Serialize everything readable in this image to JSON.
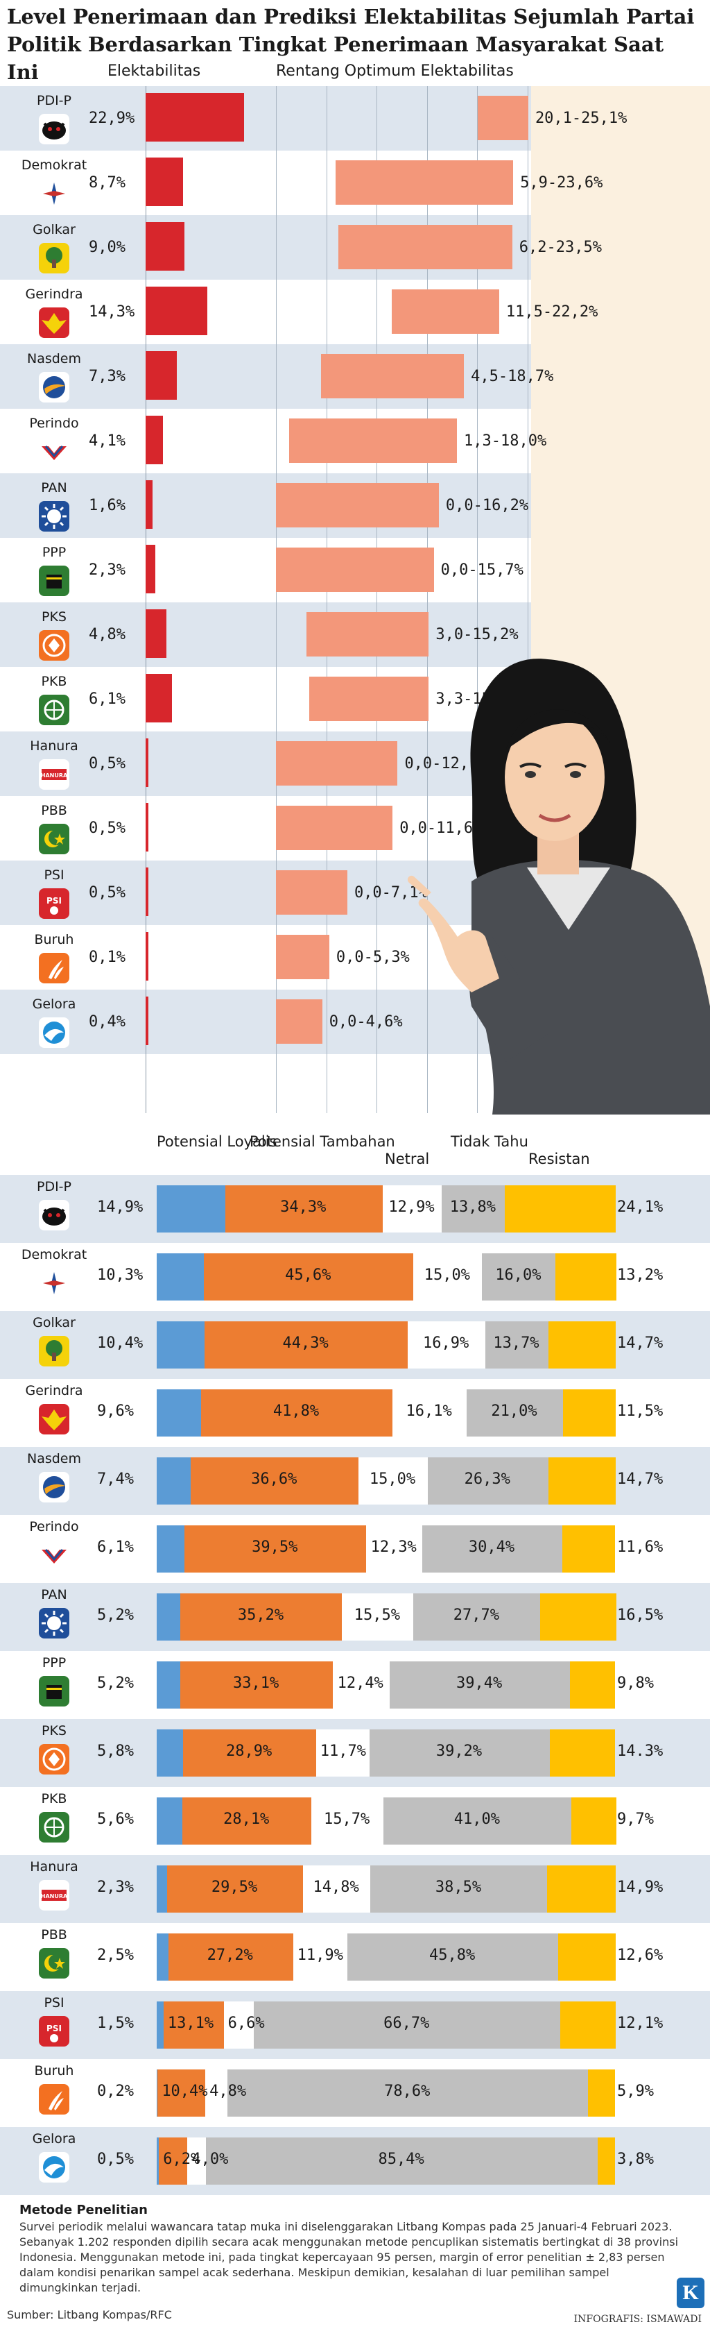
{
  "title": "Level Penerimaan dan Prediksi Elektabilitas Sejumlah Partai Politik Berdasarkan Tingkat Penerimaan Masyarakat Saat Ini",
  "colors": {
    "band": "#dde5ee",
    "elek_bar": "#d7262c",
    "range_bar": "#f3977a",
    "loyal": "#5b9bd5",
    "tambahan": "#ed7d31",
    "netral": "#ffffff",
    "tidak_tahu": "#bfbfbf",
    "resistan": "#ffc000",
    "cream": "#fbf0df"
  },
  "section1": {
    "header_elek": "Elektabilitas",
    "header_range": "Rentang Optimum Elektabilitas"
  },
  "section2": {
    "headers": {
      "loyal": "Potensial Loyalis",
      "tambahan": "Potensial Tambahan",
      "netral": "Netral",
      "tidak_tahu": "Tidak Tahu",
      "resistan": "Resistan"
    }
  },
  "parties": [
    {
      "name": "PDI-P",
      "logo": "bull-icon",
      "logo_bg": "#ffffff",
      "logo_fg": "#d7262c"
    },
    {
      "name": "Demokrat",
      "logo": "mercy-star-icon",
      "logo_bg": "#ffffff",
      "logo_fg": "#1f4e9a"
    },
    {
      "name": "Golkar",
      "logo": "banyan-tree-icon",
      "logo_bg": "#f5d20a",
      "logo_fg": "#2e7d32"
    },
    {
      "name": "Gerindra",
      "logo": "garuda-icon",
      "logo_bg": "#d7262c",
      "logo_fg": "#f5d20a"
    },
    {
      "name": "Nasdem",
      "logo": "nasdem-circle-icon",
      "logo_bg": "#ffffff",
      "logo_fg": "#1f4e9a"
    },
    {
      "name": "Perindo",
      "logo": "perindo-wing-icon",
      "logo_bg": "#ffffff",
      "logo_fg": "#1f4e9a"
    },
    {
      "name": "PAN",
      "logo": "sun-icon",
      "logo_bg": "#1f4e9a",
      "logo_fg": "#ffffff"
    },
    {
      "name": "PPP",
      "logo": "kaaba-icon",
      "logo_bg": "#2e7d32",
      "logo_fg": "#f5d20a"
    },
    {
      "name": "PKS",
      "logo": "pks-crescent-icon",
      "logo_bg": "#f37021",
      "logo_fg": "#ffffff"
    },
    {
      "name": "PKB",
      "logo": "globe-star-icon",
      "logo_bg": "#2e7d32",
      "logo_fg": "#ffffff"
    },
    {
      "name": "Hanura",
      "logo": "hanura-shield-icon",
      "logo_bg": "#ffffff",
      "logo_fg": "#d7262c",
      "logo_text": "HANURA"
    },
    {
      "name": "PBB",
      "logo": "crescent-star-icon",
      "logo_bg": "#2e7d32",
      "logo_fg": "#f5d20a"
    },
    {
      "name": "PSI",
      "logo": "psi-rose-icon",
      "logo_bg": "#d7262c",
      "logo_fg": "#ffffff",
      "logo_text": "PSI"
    },
    {
      "name": "Buruh",
      "logo": "buruh-sprout-icon",
      "logo_bg": "#f37021",
      "logo_fg": "#ffffff"
    },
    {
      "name": "Gelora",
      "logo": "gelora-wave-icon",
      "logo_bg": "#ffffff",
      "logo_fg": "#1f8fd6"
    }
  ],
  "chart_data": [
    {
      "type": "bar",
      "title": "Elektabilitas",
      "categories": [
        "PDI-P",
        "Demokrat",
        "Golkar",
        "Gerindra",
        "Nasdem",
        "Perindo",
        "PAN",
        "PPP",
        "PKS",
        "PKB",
        "Hanura",
        "PBB",
        "PSI",
        "Buruh",
        "Gelora"
      ],
      "values": [
        22.9,
        8.7,
        9.0,
        14.3,
        7.3,
        4.1,
        1.6,
        2.3,
        4.8,
        6.1,
        0.5,
        0.5,
        0.5,
        0.1,
        0.4
      ],
      "labels": [
        "22,9%",
        "8,7%",
        "9,0%",
        "14,3%",
        "7,3%",
        "4,1%",
        "1,6%",
        "2,3%",
        "4,8%",
        "6,1%",
        "0,5%",
        "0,5%",
        "0,5%",
        "0,1%",
        "0,4%"
      ]
    },
    {
      "type": "bar",
      "title": "Rentang Optimum Elektabilitas",
      "categories": [
        "PDI-P",
        "Demokrat",
        "Golkar",
        "Gerindra",
        "Nasdem",
        "Perindo",
        "PAN",
        "PPP",
        "PKS",
        "PKB",
        "Hanura",
        "PBB",
        "PSI",
        "Buruh",
        "Gelora"
      ],
      "ranges": [
        [
          20.1,
          25.1
        ],
        [
          5.9,
          23.6
        ],
        [
          6.2,
          23.5
        ],
        [
          11.5,
          22.2
        ],
        [
          4.5,
          18.7
        ],
        [
          1.3,
          18.0
        ],
        [
          0.0,
          16.2
        ],
        [
          0.0,
          15.7
        ],
        [
          3.0,
          15.2
        ],
        [
          3.3,
          15.2
        ],
        [
          0.0,
          12.1
        ],
        [
          0.0,
          11.6
        ],
        [
          0.0,
          7.1
        ],
        [
          0.0,
          5.3
        ],
        [
          0.0,
          4.6
        ]
      ],
      "labels": [
        "20,1-25,1%",
        "5,9-23,6%",
        "6,2-23,5%",
        "11,5-22,2%",
        "4,5-18,7%",
        "1,3-18,0%",
        "0,0-16,2%",
        "0,0-15,7%",
        "3,0-15,2%",
        "3,3-15,2%",
        "0,0-12,1%",
        "0,0-11,6%",
        "0,0-7,1%",
        "0,0-5,3%",
        "0,0-4,6%"
      ]
    },
    {
      "type": "bar",
      "stacked": true,
      "categories": [
        "PDI-P",
        "Demokrat",
        "Golkar",
        "Gerindra",
        "Nasdem",
        "Perindo",
        "PAN",
        "PPP",
        "PKS",
        "PKB",
        "Hanura",
        "PBB",
        "PSI",
        "Buruh",
        "Gelora"
      ],
      "series": [
        {
          "name": "Potensial Loyalis",
          "values": [
            14.9,
            10.3,
            10.4,
            9.6,
            7.4,
            6.1,
            5.2,
            5.2,
            5.8,
            5.6,
            2.3,
            2.5,
            1.5,
            0.2,
            0.5
          ],
          "labels": [
            "14,9%",
            "10,3%",
            "10,4%",
            "9,6%",
            "7,4%",
            "6,1%",
            "5,2%",
            "5,2%",
            "5,8%",
            "5,6%",
            "2,3%",
            "2,5%",
            "1,5%",
            "0,2%",
            "0,5%"
          ]
        },
        {
          "name": "Potensial Tambahan",
          "values": [
            34.3,
            45.6,
            44.3,
            41.8,
            36.6,
            39.5,
            35.2,
            33.1,
            28.9,
            28.1,
            29.5,
            27.2,
            13.1,
            10.4,
            6.2
          ],
          "labels": [
            "34,3%",
            "45,6%",
            "44,3%",
            "41,8%",
            "36,6%",
            "39,5%",
            "35,2%",
            "33,1%",
            "28,9%",
            "28,1%",
            "29,5%",
            "27,2%",
            "13,1%",
            "10,4%",
            "6,2%"
          ]
        },
        {
          "name": "Netral",
          "values": [
            12.9,
            15.0,
            16.9,
            16.1,
            15.0,
            12.3,
            15.5,
            12.4,
            11.7,
            15.7,
            14.8,
            11.9,
            6.6,
            4.8,
            4.0
          ],
          "labels": [
            "12,9%",
            "15,0%",
            "16,9%",
            "16,1%",
            "15,0%",
            "12,3%",
            "15,5%",
            "12,4%",
            "11,7%",
            "15,7%",
            "14,8%",
            "11,9%",
            "6,6%",
            "4,8%",
            "4,0%"
          ]
        },
        {
          "name": "Tidak Tahu",
          "values": [
            13.8,
            16.0,
            13.7,
            21.0,
            26.3,
            30.4,
            27.7,
            39.4,
            39.2,
            41.0,
            38.5,
            45.8,
            66.7,
            78.6,
            85.4
          ],
          "labels": [
            "13,8%",
            "16,0%",
            "13,7%",
            "21,0%",
            "26,3%",
            "30,4%",
            "27,7%",
            "39,4%",
            "39,2%",
            "41,0%",
            "38,5%",
            "45,8%",
            "66,7%",
            "78,6%",
            "85,4%"
          ]
        },
        {
          "name": "Resistan",
          "values": [
            24.1,
            13.2,
            14.7,
            11.5,
            14.7,
            11.6,
            16.5,
            9.8,
            14.3,
            9.7,
            14.9,
            12.6,
            12.1,
            5.9,
            3.8
          ],
          "labels": [
            "24,1%",
            "13,2%",
            "14,7%",
            "11,5%",
            "14,7%",
            "11,6%",
            "16,5%",
            "9,8%",
            "14.3%",
            "9,7%",
            "14,9%",
            "12,6%",
            "12,1%",
            "5,9%",
            "3,8%"
          ]
        }
      ]
    }
  ],
  "method": {
    "title": "Metode Penelitian",
    "text": "Survei periodik melalui wawancara tatap muka ini diselenggarakan Litbang Kompas pada 25 Januari-4 Februari 2023. Sebanyak 1.202 responden dipilih secara acak menggunakan metode pencuplikan sistematis bertingkat di 38 provinsi Indonesia. Menggunakan metode ini, pada tingkat kepercayaan 95 persen, margin of error penelitian ± 2,83 persen dalam kondisi penarikan sampel acak sederhana. Meskipun demikian, kesalahan di luar pemilihan sampel dimungkinkan terjadi."
  },
  "source": "Sumber: Litbang Kompas/RFC",
  "credit": "INFOGRAFIS: ISMAWADI",
  "brand_letter": "K"
}
